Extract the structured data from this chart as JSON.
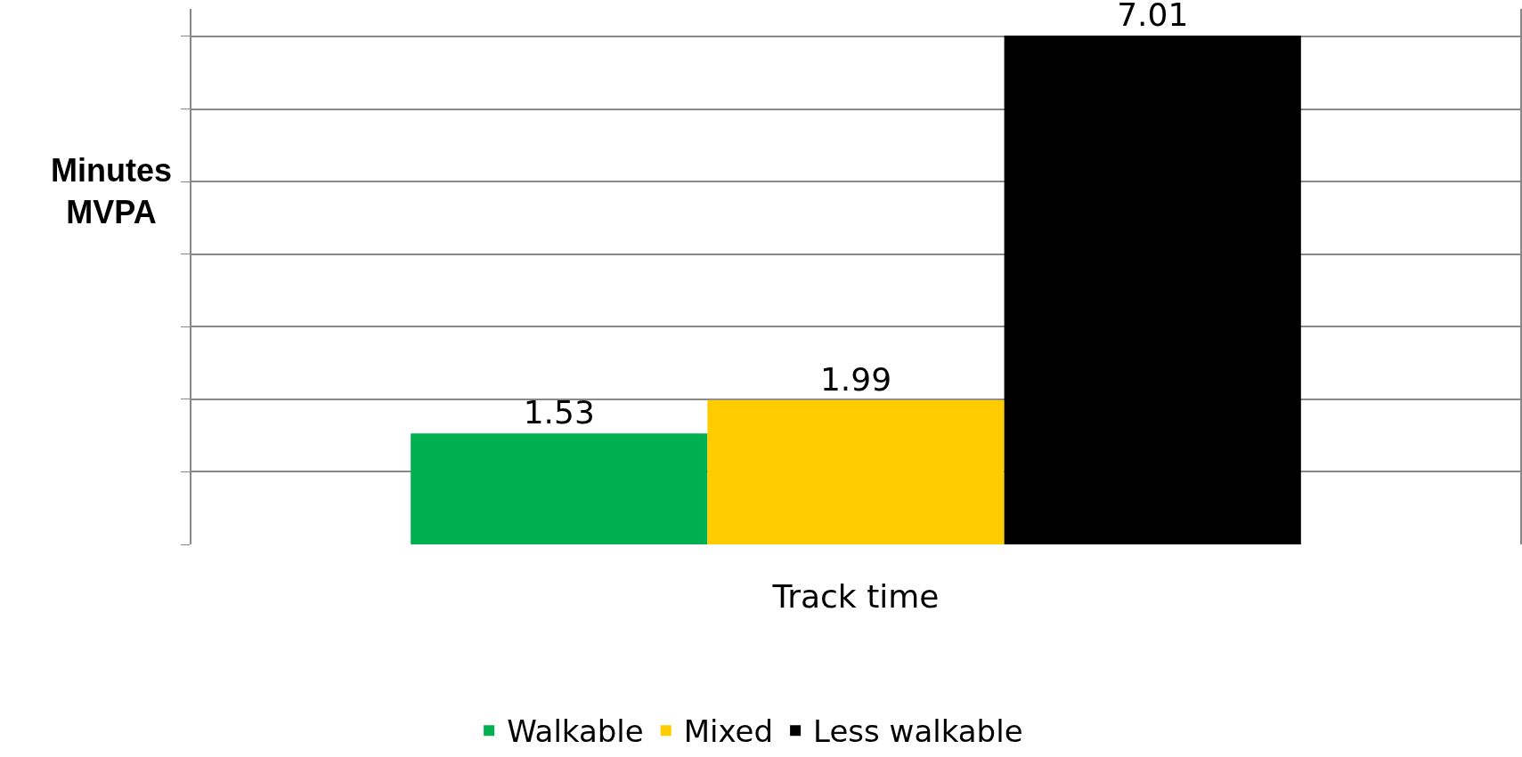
{
  "chart_data": {
    "type": "bar",
    "xlabel": "Track time",
    "annotations": [
      "Minutes MVPA"
    ],
    "categories": [
      null
    ],
    "series": [
      {
        "name": "Walkable",
        "color": "#00b050",
        "values": [
          1.53
        ]
      },
      {
        "name": "Mixed",
        "color": "#ffcc00",
        "values": [
          1.99
        ]
      },
      {
        "name": "Less walkable",
        "color": "#000000",
        "values": [
          7.01
        ]
      }
    ],
    "data_labels": true,
    "grid": "y",
    "legend": "bottom"
  }
}
